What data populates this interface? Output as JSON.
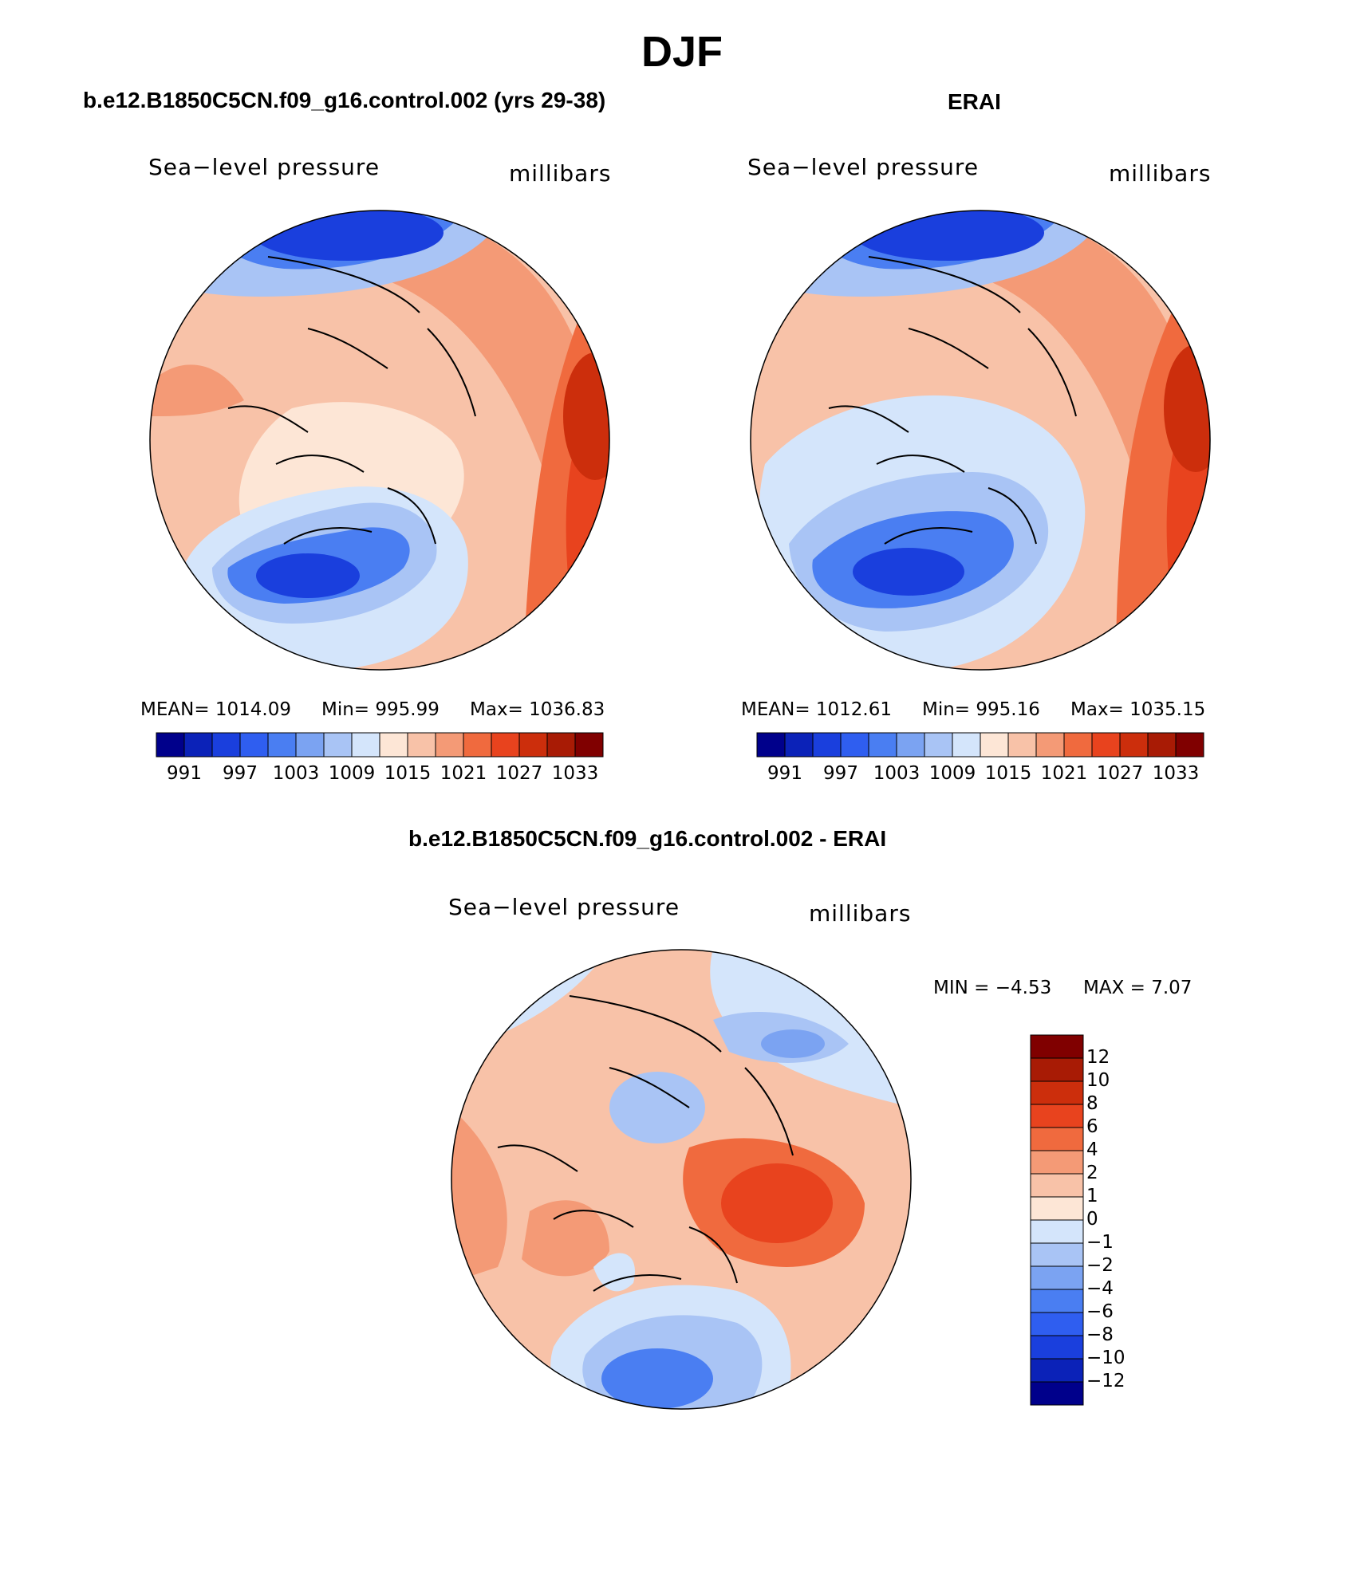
{
  "figure": {
    "title": "DJF"
  },
  "panels": [
    {
      "title": "b.e12.B1850C5CN.f09_g16.control.002 (yrs 29-38)",
      "left_label": "Sea−level pressure",
      "right_label": "millibars",
      "stats": {
        "mean": "MEAN=  1014.09",
        "min": "Min=  995.99",
        "max": "Max=  1036.83"
      }
    },
    {
      "title": "ERAI",
      "left_label": "Sea−level pressure",
      "right_label": "millibars",
      "stats": {
        "mean": "MEAN=  1012.61",
        "min": "Min=  995.16",
        "max": "Max=  1035.15"
      }
    },
    {
      "title": "b.e12.B1850C5CN.f09_g16.control.002 - ERAI",
      "left_label": "Sea−level pressure",
      "right_label": "millibars",
      "stats": {
        "min": "MIN =    −4.53",
        "max": "MAX =      7.07"
      }
    }
  ],
  "colorbar_abs": {
    "colors": [
      "#00008b",
      "#0b22b8",
      "#1a3fdd",
      "#2f5ef0",
      "#4a7ef2",
      "#7ba3f2",
      "#a9c4f5",
      "#d4e5fb",
      "#fde6d6",
      "#f8c2a8",
      "#f49a76",
      "#f06a3e",
      "#e8431e",
      "#cc2e0c",
      "#a81b05",
      "#800000"
    ],
    "labels": [
      "991",
      "997",
      "1003",
      "1009",
      "1015",
      "1021",
      "1027",
      "1033"
    ]
  },
  "colorbar_diff": {
    "colors": [
      "#00008b",
      "#0b22b8",
      "#1a3fdd",
      "#2f5ef0",
      "#4a7ef2",
      "#7ba3f2",
      "#a9c4f5",
      "#d4e5fb",
      "#fde6d6",
      "#f8c2a8",
      "#f49a76",
      "#f06a3e",
      "#e8431e",
      "#cc2e0c",
      "#a81b05",
      "#800000"
    ],
    "labels": [
      "12",
      "10",
      "8",
      "6",
      "4",
      "2",
      "1",
      "0",
      "−1",
      "−2",
      "−4",
      "−6",
      "−8",
      "−10",
      "−12"
    ]
  },
  "map_colors": {
    "deep_blue": "#1a3fdd",
    "blue": "#4a7ef2",
    "light_blue": "#a9c4f5",
    "pale_blue": "#d4e5fb",
    "pale_red": "#fde6d6",
    "light_red": "#f8c2a8",
    "salmon": "#f49a76",
    "orange": "#f06a3e",
    "red": "#e8431e",
    "dark_red": "#cc2e0c",
    "maroon": "#a81b05"
  }
}
